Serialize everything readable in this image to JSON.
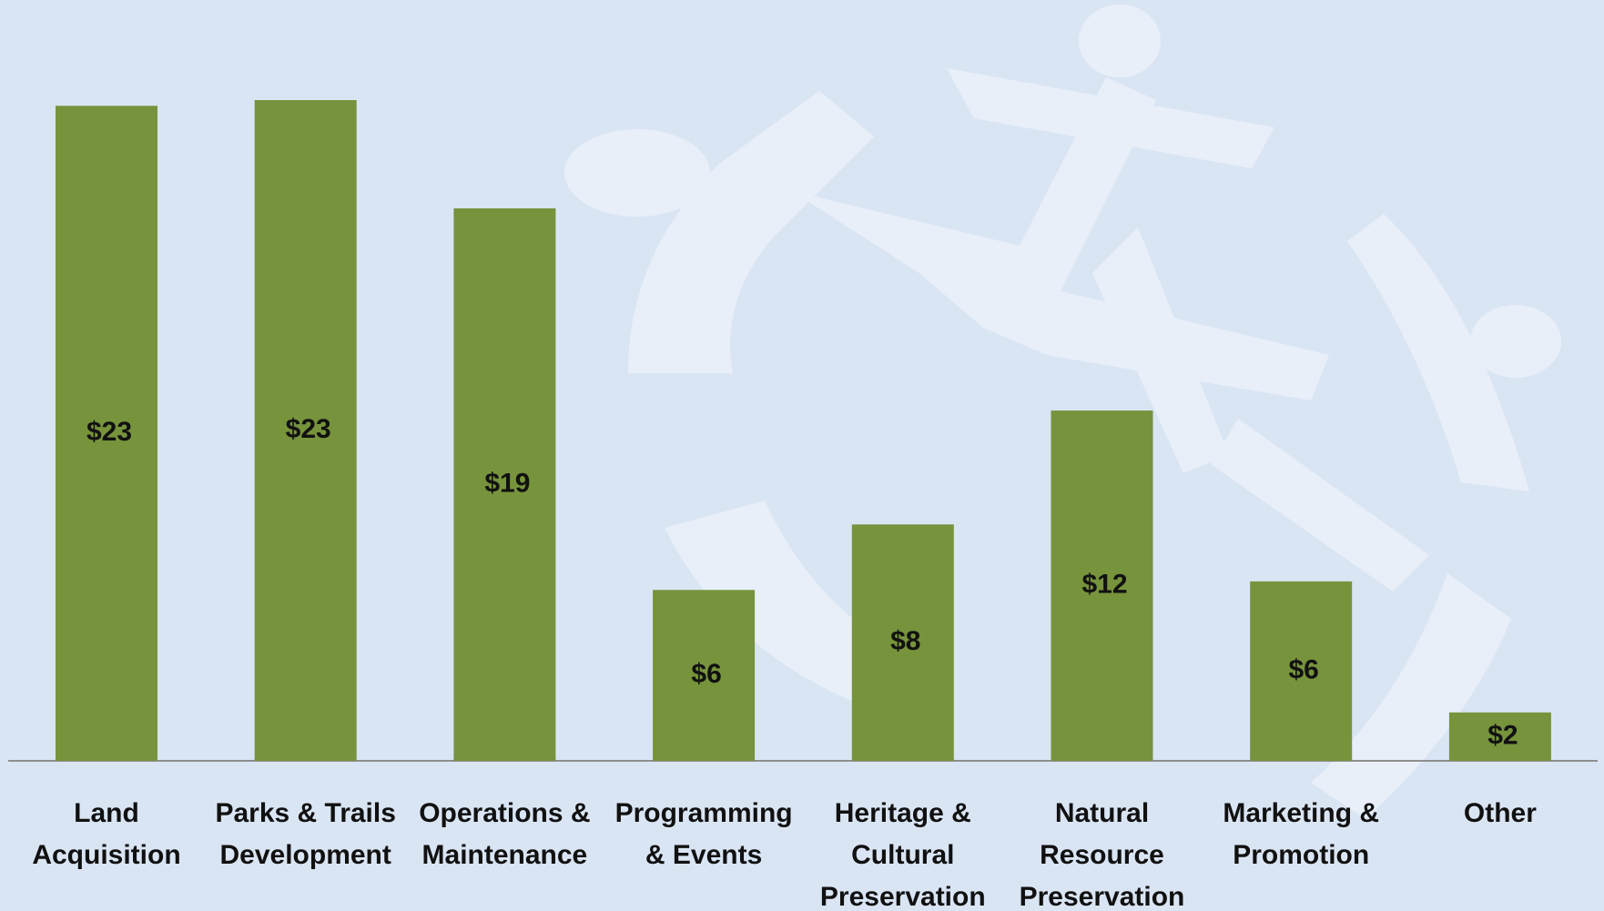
{
  "chart_data": {
    "type": "bar",
    "categories": [
      "Land\nAcquisition",
      "Parks & Trails\nDevelopment",
      "Operations &\nMaintenance",
      "Programming\n& Events",
      "Heritage &\nCultural\nPreservation",
      "Natural\nResource\nPreservation",
      "Marketing &\nPromotion",
      "Other"
    ],
    "values": [
      23.0,
      23.2,
      19.4,
      6.0,
      8.3,
      12.3,
      6.3,
      1.7
    ],
    "value_labels": [
      "$23",
      "$23",
      "$19",
      "$6",
      "$8",
      "$12",
      "$6",
      "$2"
    ],
    "color": "#77933c"
  }
}
